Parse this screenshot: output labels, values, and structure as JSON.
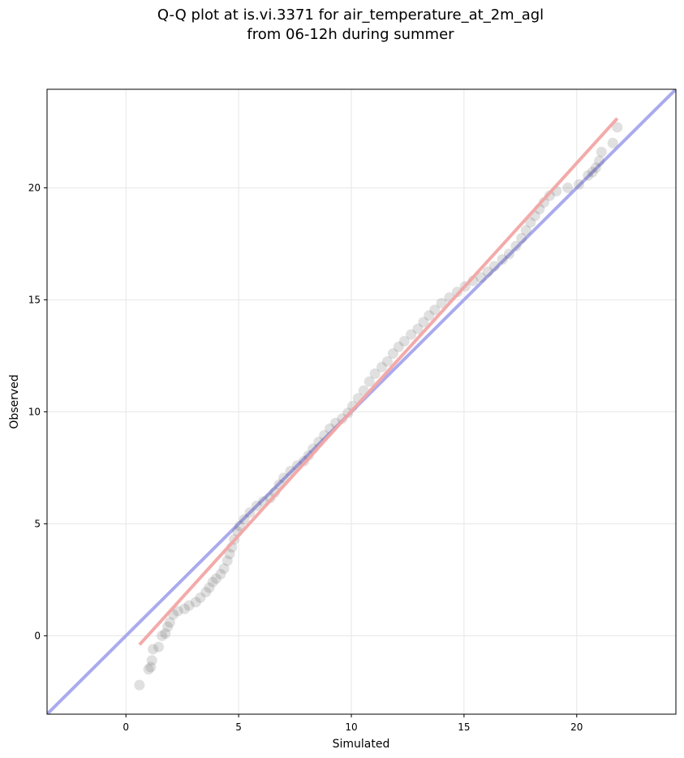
{
  "chart_data": {
    "type": "scatter",
    "title_lines": [
      "Q-Q plot at is.vi.3371 for air_temperature_at_2m_agl",
      "from 06-12h during summer"
    ],
    "xlabel": "Simulated",
    "ylabel": "Observed",
    "xlim": [
      -3.5,
      24.4
    ],
    "ylim": [
      -3.5,
      24.4
    ],
    "xticks": [
      0,
      5,
      10,
      15,
      20
    ],
    "yticks": [
      0,
      5,
      10,
      15,
      20
    ],
    "xtick_labels": [
      "0",
      "5",
      "10",
      "15",
      "20"
    ],
    "ytick_labels": [
      "0",
      "5",
      "10",
      "15",
      "20"
    ],
    "grid": true,
    "identity_line": {
      "from": [
        -3.5,
        -3.5
      ],
      "to": [
        24.4,
        24.4
      ],
      "color": "#aaaaee"
    },
    "fit_line": {
      "from": [
        0.6,
        -0.4
      ],
      "to": [
        21.8,
        23.1
      ],
      "color": "#f4a6a6"
    },
    "points_color": "#555555",
    "points": [
      [
        0.6,
        -2.2
      ],
      [
        1.0,
        -1.5
      ],
      [
        1.1,
        -1.4
      ],
      [
        1.15,
        -1.1
      ],
      [
        1.2,
        -0.6
      ],
      [
        1.45,
        -0.5
      ],
      [
        1.6,
        0.0
      ],
      [
        1.75,
        0.1
      ],
      [
        1.85,
        0.4
      ],
      [
        1.95,
        0.6
      ],
      [
        2.1,
        0.95
      ],
      [
        2.3,
        1.1
      ],
      [
        2.6,
        1.2
      ],
      [
        2.8,
        1.35
      ],
      [
        3.1,
        1.5
      ],
      [
        3.3,
        1.7
      ],
      [
        3.55,
        1.95
      ],
      [
        3.7,
        2.15
      ],
      [
        3.85,
        2.4
      ],
      [
        4.0,
        2.55
      ],
      [
        4.2,
        2.75
      ],
      [
        4.35,
        3.0
      ],
      [
        4.5,
        3.35
      ],
      [
        4.6,
        3.65
      ],
      [
        4.7,
        3.95
      ],
      [
        4.8,
        4.3
      ],
      [
        4.95,
        4.65
      ],
      [
        5.05,
        4.9
      ],
      [
        5.25,
        5.2
      ],
      [
        5.5,
        5.5
      ],
      [
        5.8,
        5.8
      ],
      [
        6.1,
        6.0
      ],
      [
        6.4,
        6.15
      ],
      [
        6.6,
        6.4
      ],
      [
        6.8,
        6.75
      ],
      [
        7.0,
        7.05
      ],
      [
        7.3,
        7.35
      ],
      [
        7.6,
        7.6
      ],
      [
        7.9,
        7.8
      ],
      [
        8.1,
        8.05
      ],
      [
        8.3,
        8.35
      ],
      [
        8.55,
        8.65
      ],
      [
        8.8,
        8.95
      ],
      [
        9.05,
        9.25
      ],
      [
        9.3,
        9.5
      ],
      [
        9.6,
        9.7
      ],
      [
        9.85,
        9.95
      ],
      [
        10.05,
        10.25
      ],
      [
        10.3,
        10.6
      ],
      [
        10.55,
        10.95
      ],
      [
        10.8,
        11.35
      ],
      [
        11.05,
        11.7
      ],
      [
        11.35,
        12.0
      ],
      [
        11.6,
        12.25
      ],
      [
        11.85,
        12.6
      ],
      [
        12.1,
        12.9
      ],
      [
        12.35,
        13.15
      ],
      [
        12.65,
        13.45
      ],
      [
        12.95,
        13.7
      ],
      [
        13.2,
        14.0
      ],
      [
        13.45,
        14.3
      ],
      [
        13.7,
        14.55
      ],
      [
        14.0,
        14.85
      ],
      [
        14.35,
        15.1
      ],
      [
        14.7,
        15.35
      ],
      [
        15.05,
        15.6
      ],
      [
        15.4,
        15.85
      ],
      [
        15.75,
        16.0
      ],
      [
        16.05,
        16.25
      ],
      [
        16.35,
        16.5
      ],
      [
        16.7,
        16.8
      ],
      [
        17.0,
        17.05
      ],
      [
        17.3,
        17.4
      ],
      [
        17.55,
        17.75
      ],
      [
        17.75,
        18.1
      ],
      [
        17.95,
        18.45
      ],
      [
        18.15,
        18.75
      ],
      [
        18.35,
        19.05
      ],
      [
        18.55,
        19.35
      ],
      [
        18.8,
        19.65
      ],
      [
        19.1,
        19.85
      ],
      [
        19.6,
        20.0
      ],
      [
        20.1,
        20.15
      ],
      [
        20.5,
        20.55
      ],
      [
        20.7,
        20.7
      ],
      [
        20.85,
        20.9
      ],
      [
        21.0,
        21.2
      ],
      [
        21.1,
        21.6
      ],
      [
        21.6,
        22.0
      ],
      [
        21.8,
        22.7
      ]
    ]
  }
}
